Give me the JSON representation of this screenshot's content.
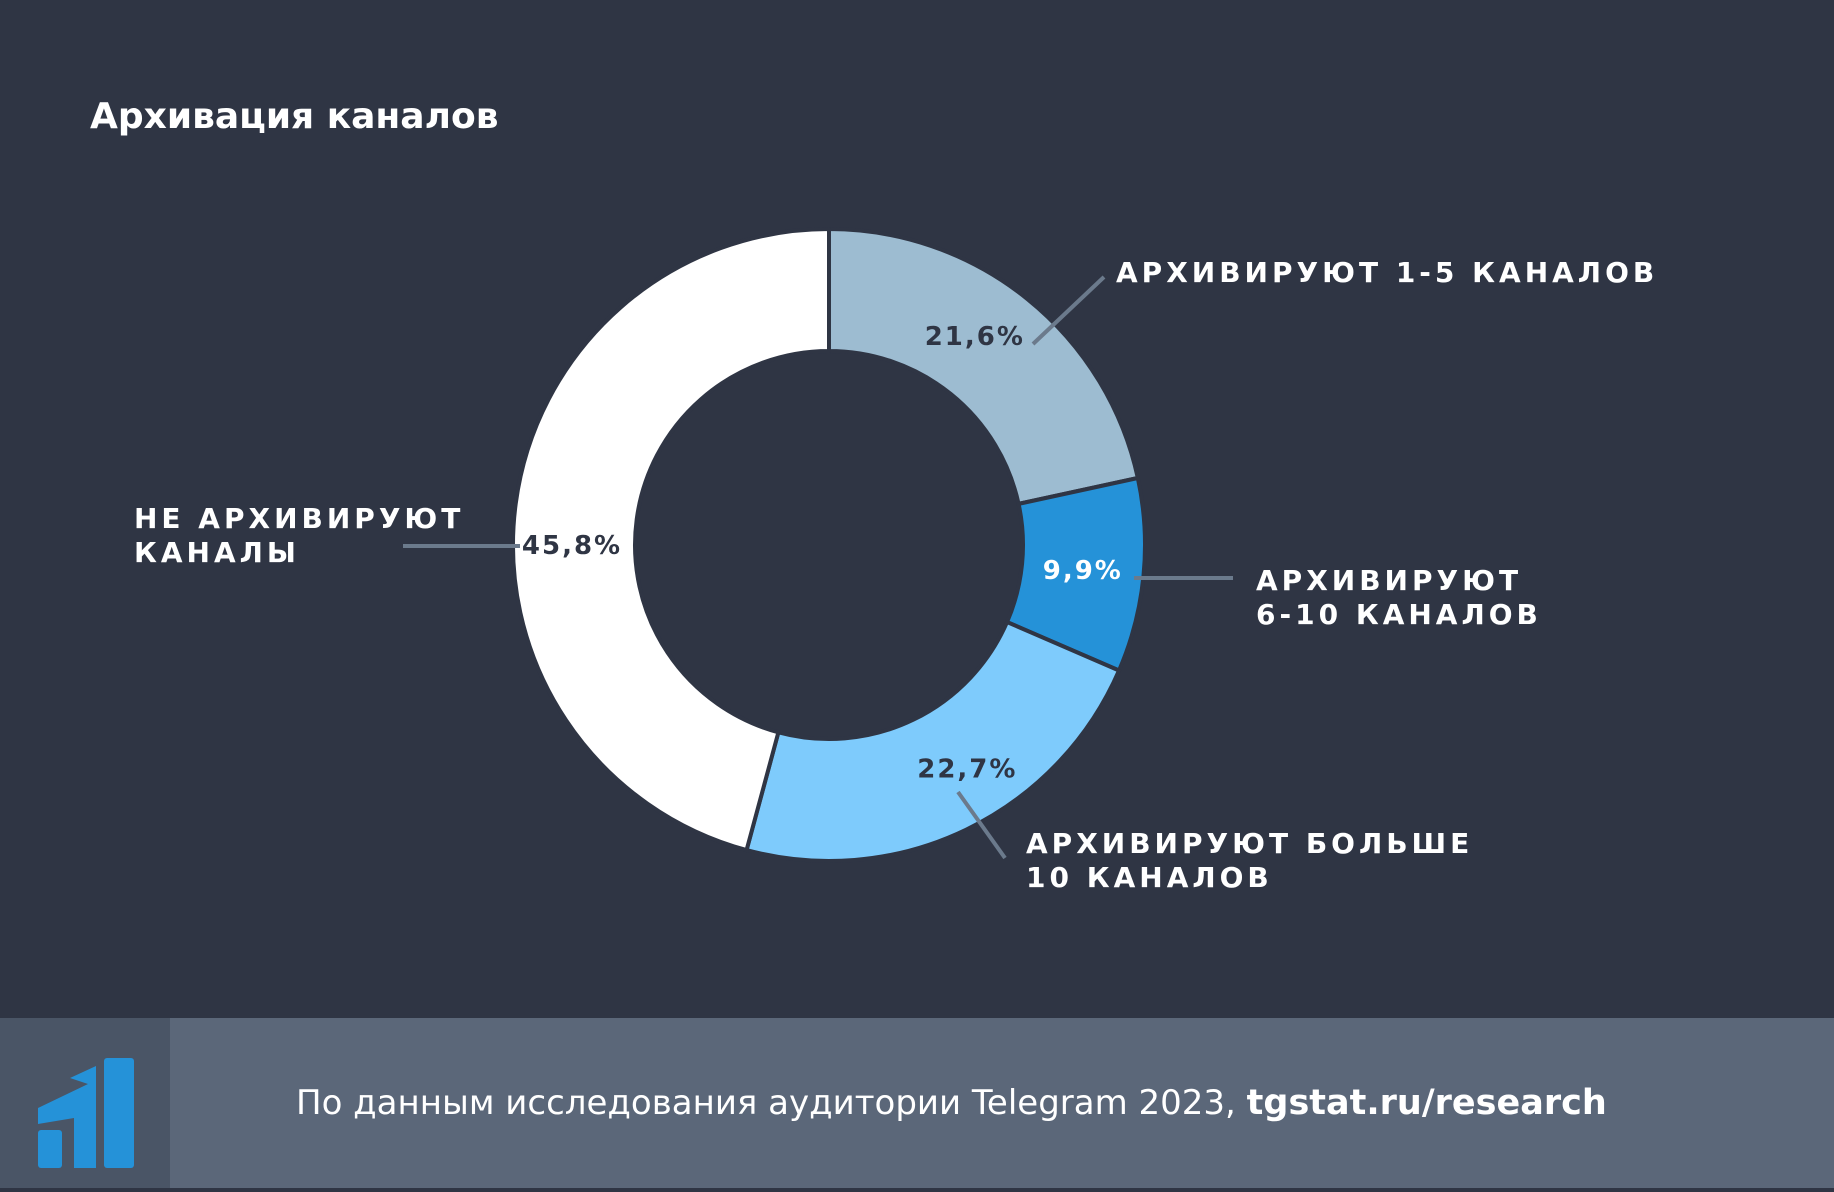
{
  "title": "Архивация каналов",
  "chart_data": {
    "type": "pie",
    "title": "Архивация каналов",
    "unit": "%",
    "slices": [
      {
        "label": "АРХИВИРУЮТ 1-5 КАНАЛОВ",
        "label_lines": [
          "АРХИВИРУЮТ 1-5 КАНАЛОВ"
        ],
        "value": 21.6,
        "value_label": "21,6%",
        "color": "#9dbcd1",
        "value_text_color": "#2f3544"
      },
      {
        "label": "АРХИВИРУЮТ 6-10 КАНАЛОВ",
        "label_lines": [
          "АРХИВИРУЮТ",
          "6-10 КАНАЛОВ"
        ],
        "value": 9.9,
        "value_label": "9,9%",
        "color": "#2592d8",
        "value_text_color": "#ffffff"
      },
      {
        "label": "АРХИВИРУЮТ БОЛЬШЕ 10 КАНАЛОВ",
        "label_lines": [
          "АРХИВИРУЮТ БОЛЬШЕ",
          "10 КАНАЛОВ"
        ],
        "value": 22.7,
        "value_label": "22,7%",
        "color": "#7ecbfc",
        "value_text_color": "#2f3544"
      },
      {
        "label": "НЕ АРХИВИРУЮТ КАНАЛЫ",
        "label_lines": [
          "НЕ АРХИВИРУЮТ",
          "КАНАЛЫ"
        ],
        "value": 45.8,
        "value_label": "45,8%",
        "color": "#ffffff",
        "value_text_color": "#2f3544"
      }
    ]
  },
  "footer": {
    "text": "По данным исследования аудитории Telegram 2023, ",
    "link": "tgstat.ru/research"
  },
  "colors": {
    "background": "#2f3544",
    "footer_background": "#5b6779",
    "logo_background": "#4a5566",
    "logo_accent": "#2592d8",
    "leader_line": "#6b7a8c"
  }
}
